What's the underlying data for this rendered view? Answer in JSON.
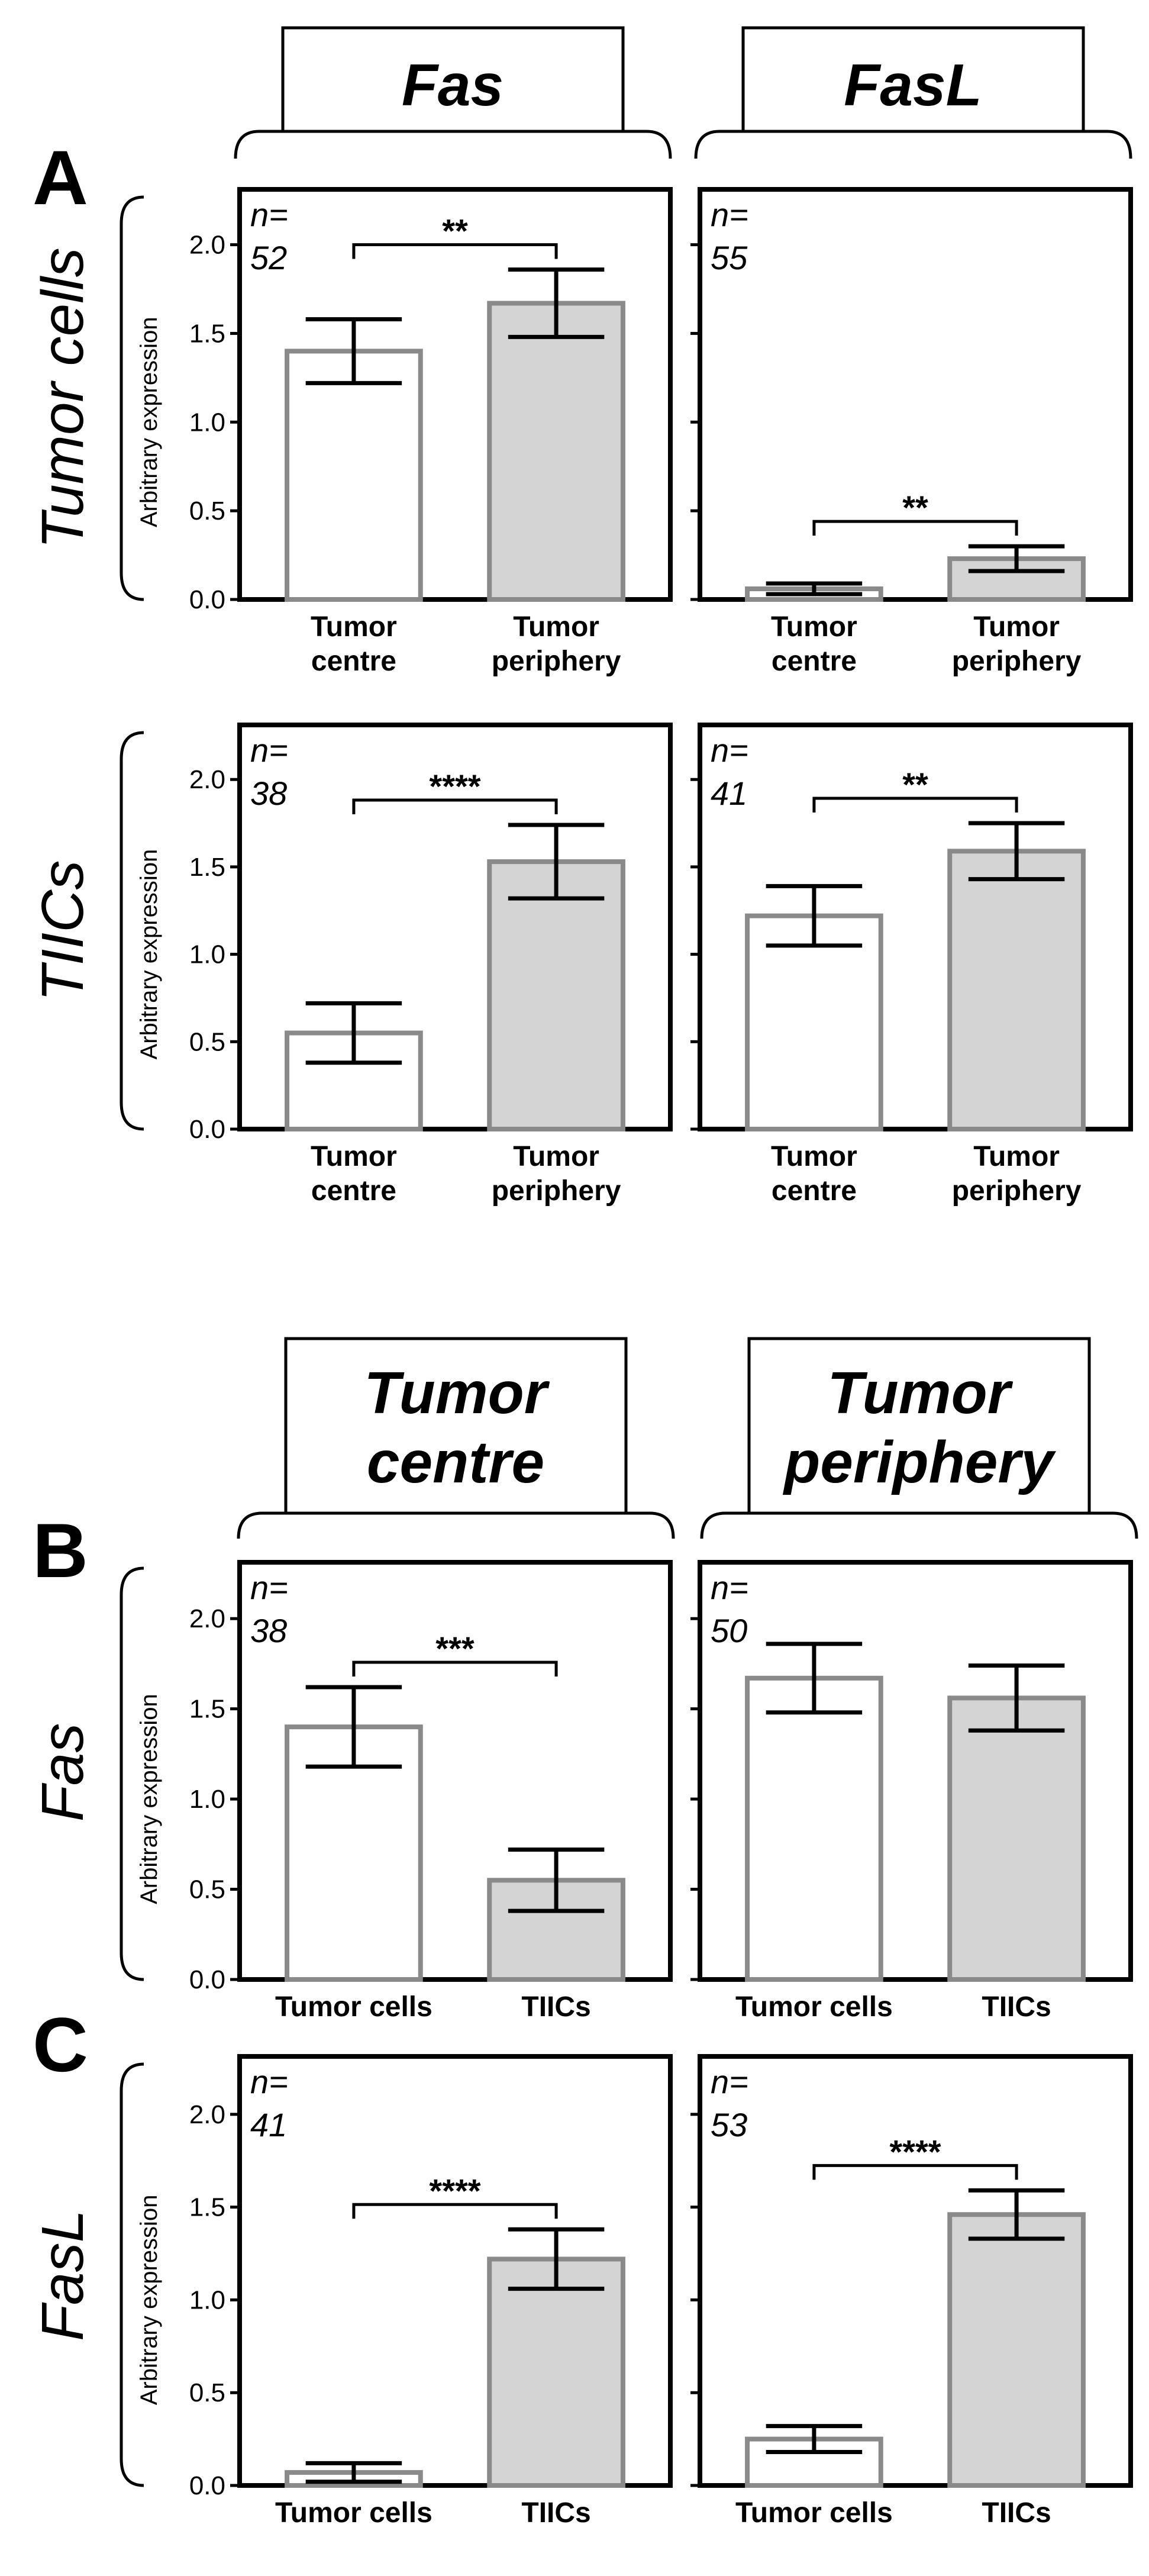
{
  "section_A": {
    "letter": "A",
    "headers": [
      "Fas",
      "FasL"
    ],
    "row_labels": [
      "Tumor cells",
      "TIICs"
    ]
  },
  "section_B": {
    "letter": "B",
    "headers": [
      [
        "Tumor",
        "centre"
      ],
      [
        "Tumor",
        "periphery"
      ]
    ],
    "row_label": "Fas"
  },
  "section_C": {
    "letter": "C",
    "row_label": "FasL"
  },
  "colors": {
    "bar_first_fill": "#ffffff",
    "bar_second_fill": "#d4d4d4",
    "bar_stroke": "#8a8a8a",
    "axis": "#000000"
  },
  "chart_data": [
    {
      "id": "A-fas-tumor-cells",
      "type": "bar",
      "panel": "A",
      "ylabel": "Arbitrary expression",
      "show_ylabel": true,
      "show_tick_labels": true,
      "ylim": [
        0,
        2.0
      ],
      "yticks": [
        "0.0",
        "0.5",
        "1.0",
        "1.5",
        "2.0"
      ],
      "categories": [
        [
          "Tumor",
          "centre"
        ],
        [
          "Tumor",
          "periphery"
        ]
      ],
      "values": [
        1.4,
        1.67
      ],
      "errors": [
        0.18,
        0.19
      ],
      "n_label": [
        "n=",
        "52"
      ],
      "significance": "**"
    },
    {
      "id": "A-fasl-tumor-cells",
      "type": "bar",
      "panel": "A",
      "ylabel": "",
      "show_ylabel": false,
      "show_tick_labels": false,
      "ylim": [
        0,
        2.0
      ],
      "yticks": [
        "0.0",
        "0.5",
        "1.0",
        "1.5",
        "2.0"
      ],
      "categories": [
        [
          "Tumor",
          "centre"
        ],
        [
          "Tumor",
          "periphery"
        ]
      ],
      "values": [
        0.06,
        0.23
      ],
      "errors": [
        0.03,
        0.07
      ],
      "n_label": [
        "n=",
        "55"
      ],
      "significance": "**"
    },
    {
      "id": "A-fas-tiics",
      "type": "bar",
      "panel": "A",
      "ylabel": "Arbitrary expression",
      "show_ylabel": true,
      "show_tick_labels": true,
      "ylim": [
        0,
        2.0
      ],
      "yticks": [
        "0.0",
        "0.5",
        "1.0",
        "1.5",
        "2.0"
      ],
      "categories": [
        [
          "Tumor",
          "centre"
        ],
        [
          "Tumor",
          "periphery"
        ]
      ],
      "values": [
        0.55,
        1.53
      ],
      "errors": [
        0.17,
        0.21
      ],
      "n_label": [
        "n=",
        "38"
      ],
      "significance": "****"
    },
    {
      "id": "A-fasl-tiics",
      "type": "bar",
      "panel": "A",
      "ylabel": "",
      "show_ylabel": false,
      "show_tick_labels": false,
      "ylim": [
        0,
        2.0
      ],
      "yticks": [
        "0.0",
        "0.5",
        "1.0",
        "1.5",
        "2.0"
      ],
      "categories": [
        [
          "Tumor",
          "centre"
        ],
        [
          "Tumor",
          "periphery"
        ]
      ],
      "values": [
        1.22,
        1.59
      ],
      "errors": [
        0.17,
        0.16
      ],
      "n_label": [
        "n=",
        "41"
      ],
      "significance": "**"
    },
    {
      "id": "B-fas-tumor-centre",
      "type": "bar",
      "panel": "B",
      "ylabel": "Arbitrary expression",
      "show_ylabel": true,
      "show_tick_labels": true,
      "ylim": [
        0,
        2.0
      ],
      "yticks": [
        "0.0",
        "0.5",
        "1.0",
        "1.5",
        "2.0"
      ],
      "categories": [
        [
          "Tumor cells"
        ],
        [
          "TIICs"
        ]
      ],
      "values": [
        1.4,
        0.55
      ],
      "errors": [
        0.22,
        0.17
      ],
      "n_label": [
        "n=",
        "38"
      ],
      "significance": "***"
    },
    {
      "id": "B-fas-tumor-periphery",
      "type": "bar",
      "panel": "B",
      "ylabel": "",
      "show_ylabel": false,
      "show_tick_labels": false,
      "ylim": [
        0,
        2.0
      ],
      "yticks": [
        "0.0",
        "0.5",
        "1.0",
        "1.5",
        "2.0"
      ],
      "categories": [
        [
          "Tumor cells"
        ],
        [
          "TIICs"
        ]
      ],
      "values": [
        1.67,
        1.56
      ],
      "errors": [
        0.19,
        0.18
      ],
      "n_label": [
        "n=",
        "50"
      ],
      "significance": ""
    },
    {
      "id": "C-fasl-tumor-centre",
      "type": "bar",
      "panel": "C",
      "ylabel": "Arbitrary expression",
      "show_ylabel": true,
      "show_tick_labels": true,
      "ylim": [
        0,
        2.0
      ],
      "yticks": [
        "0.0",
        "0.5",
        "1.0",
        "1.5",
        "2.0"
      ],
      "categories": [
        [
          "Tumor cells"
        ],
        [
          "TIICs"
        ]
      ],
      "values": [
        0.07,
        1.22
      ],
      "errors": [
        0.05,
        0.16
      ],
      "n_label": [
        "n=",
        "41"
      ],
      "significance": "****"
    },
    {
      "id": "C-fasl-tumor-periphery",
      "type": "bar",
      "panel": "C",
      "ylabel": "",
      "show_ylabel": false,
      "show_tick_labels": false,
      "ylim": [
        0,
        2.0
      ],
      "yticks": [
        "0.0",
        "0.5",
        "1.0",
        "1.5",
        "2.0"
      ],
      "categories": [
        [
          "Tumor cells"
        ],
        [
          "TIICs"
        ]
      ],
      "values": [
        0.25,
        1.46
      ],
      "errors": [
        0.07,
        0.13
      ],
      "n_label": [
        "n=",
        "53"
      ],
      "significance": "****"
    }
  ]
}
